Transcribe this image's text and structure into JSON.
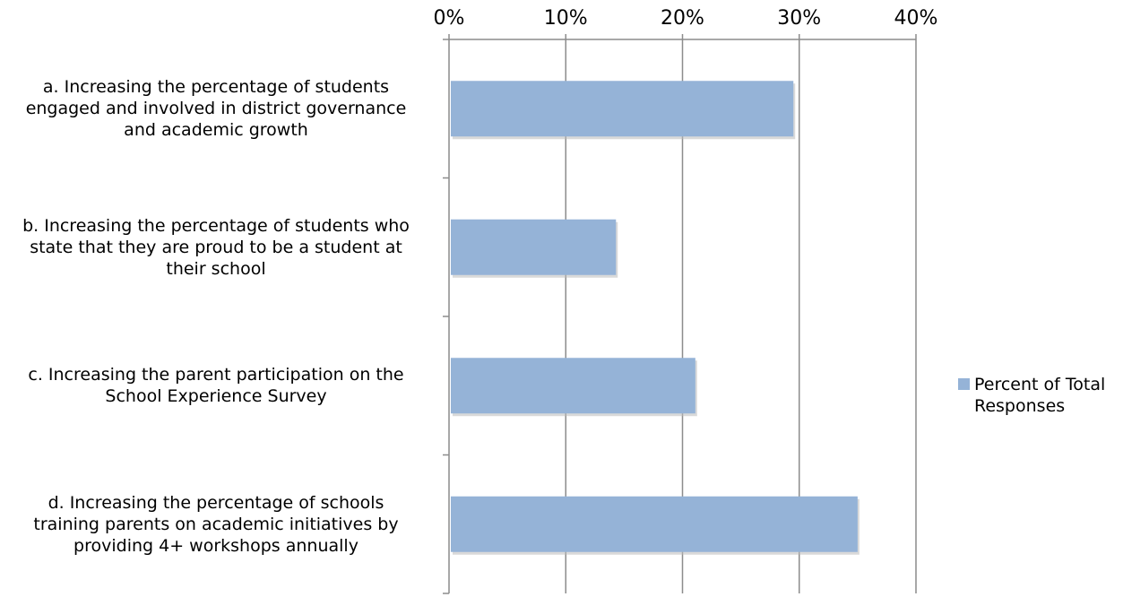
{
  "chart_data": {
    "type": "bar",
    "orientation": "horizontal",
    "categories": [
      "a. Increasing the percentage of students engaged and involved in district governance and academic growth",
      "b. Increasing the percentage of students who state that they are proud to be a student at their school",
      "c. Increasing the parent participation on the School Experience Survey",
      "d. Increasing the percentage of schools training parents on academic initiatives by providing 4+ workshops annually"
    ],
    "category_lines": [
      [
        "a. Increasing the percentage of students",
        "engaged and involved in district governance",
        "and academic growth"
      ],
      [
        "b. Increasing the percentage of students who",
        "state that they are proud to be a student at",
        "their school"
      ],
      [
        "c. Increasing the parent participation on the",
        "School Experience Survey"
      ],
      [
        "d. Increasing the percentage of schools",
        "training parents on academic initiatives by",
        "providing 4+ workshops annually"
      ]
    ],
    "series": [
      {
        "name": "Percent of Total Responses",
        "values": [
          29.5,
          14.3,
          21.1,
          35.0
        ],
        "color": "#95b3d7"
      }
    ],
    "xlim": [
      0,
      40
    ],
    "x_ticks": [
      "0%",
      "10%",
      "20%",
      "30%",
      "40%"
    ],
    "x_axis_position": "top",
    "grid": true,
    "legend": {
      "position": "right",
      "lines": [
        "Percent of Total",
        "Responses"
      ]
    }
  }
}
